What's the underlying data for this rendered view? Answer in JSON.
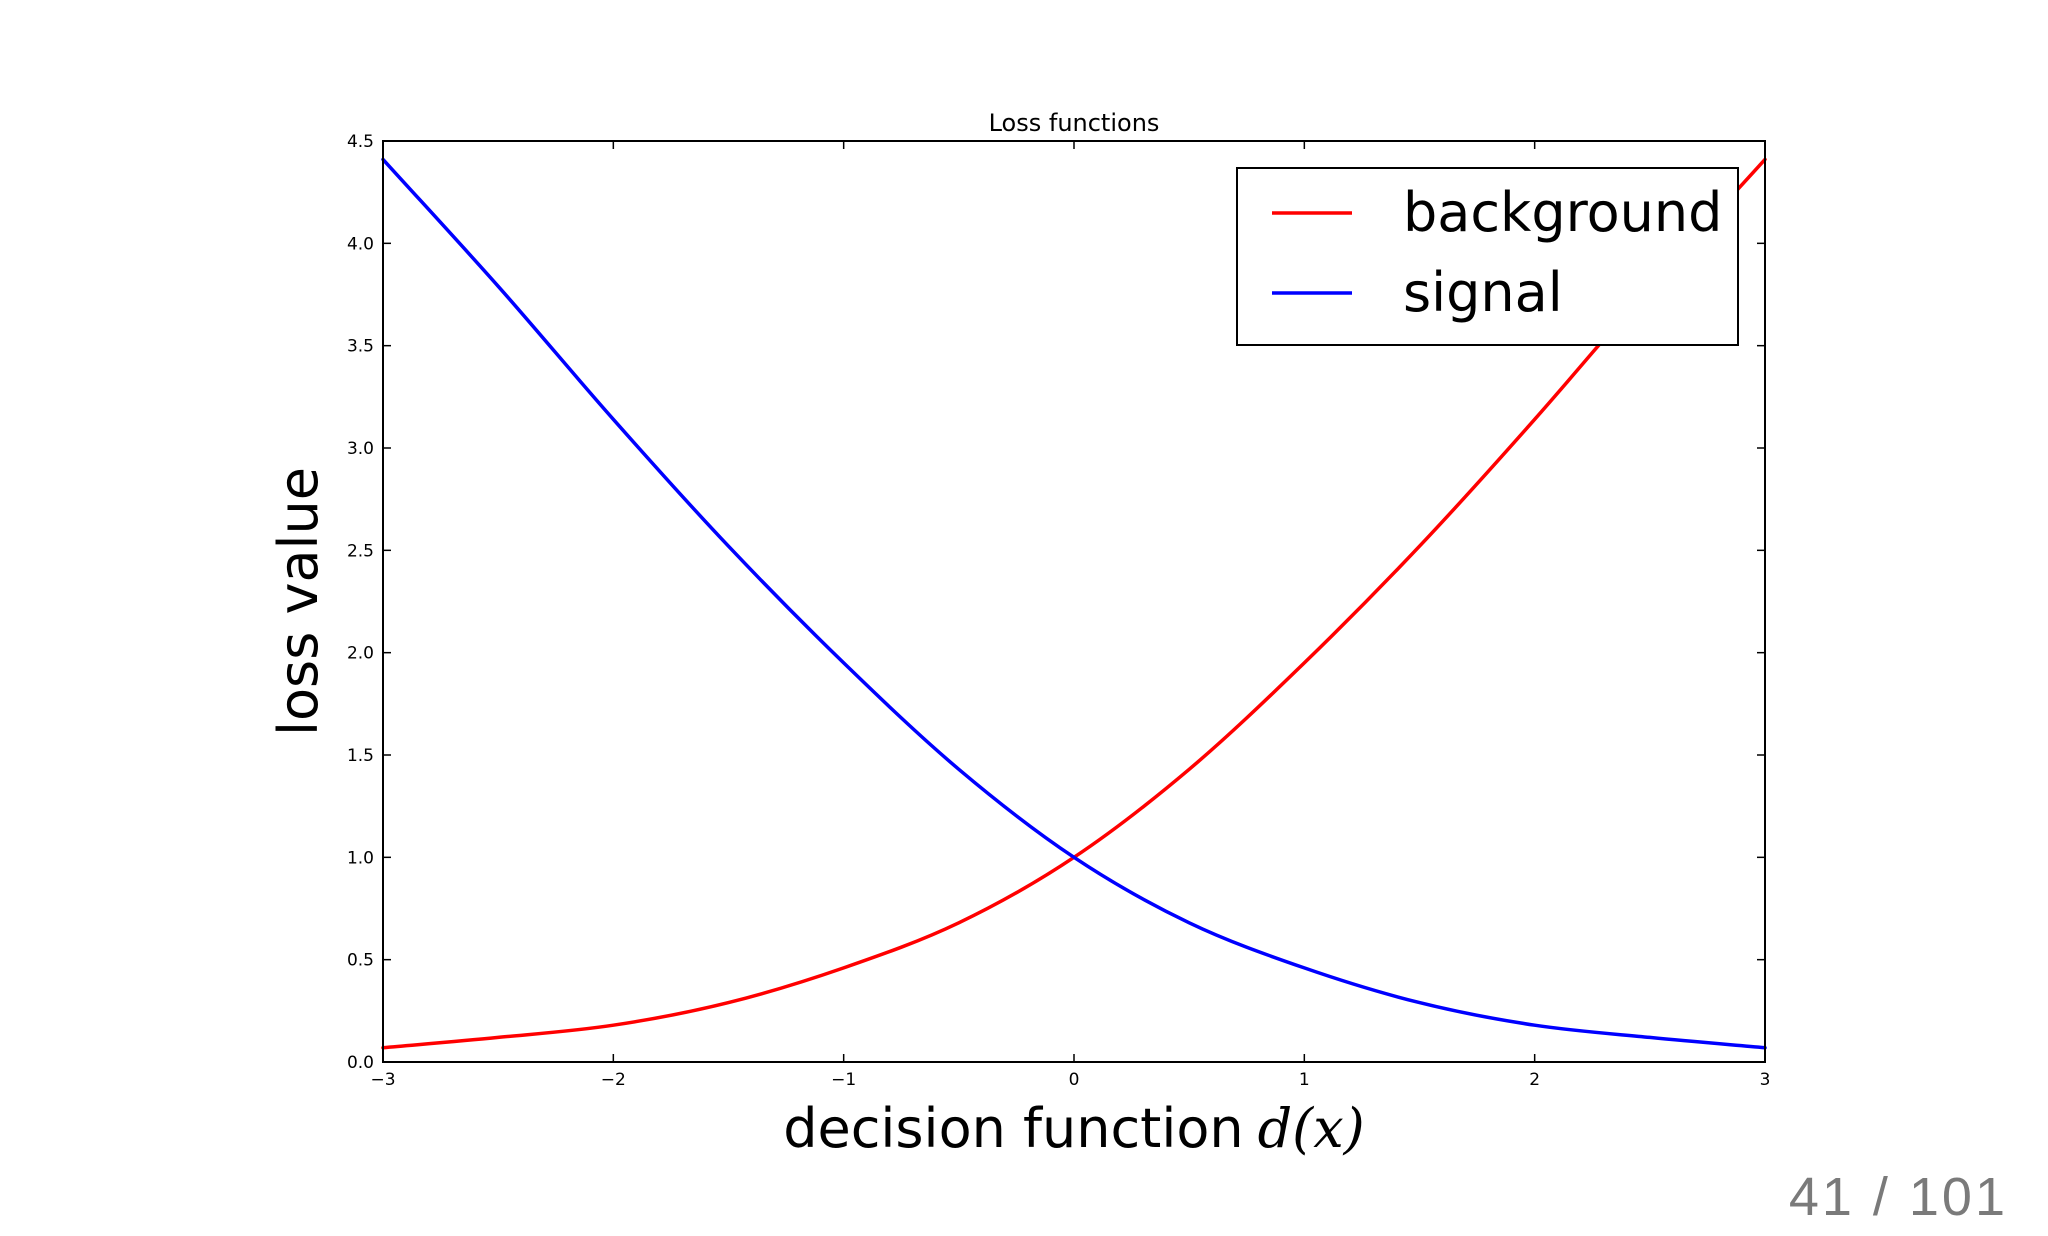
{
  "slide": {
    "page_number": "41 / 101"
  },
  "chart_data": {
    "type": "line",
    "title": "Loss functions",
    "xlabel": "decision function",
    "xlabel_math": "d(x)",
    "ylabel": "loss value",
    "xlim": [
      -3,
      3
    ],
    "ylim": [
      0,
      4.5
    ],
    "x_ticks": [
      "−3",
      "−2",
      "−1",
      "0",
      "1",
      "2",
      "3"
    ],
    "y_ticks": [
      "0.0",
      "0.5",
      "1.0",
      "1.5",
      "2.0",
      "2.5",
      "3.0",
      "3.5",
      "4.0",
      "4.5"
    ],
    "x": [
      -3.0,
      -2.5,
      -2.0,
      -1.5,
      -1.0,
      -0.5,
      0.0,
      0.5,
      1.0,
      1.5,
      2.0,
      2.5,
      3.0
    ],
    "series": [
      {
        "name": "background",
        "color": "#ff0000",
        "values": [
          0.07,
          0.12,
          0.18,
          0.29,
          0.46,
          0.68,
          1.0,
          1.43,
          1.95,
          2.52,
          3.14,
          3.79,
          4.41
        ]
      },
      {
        "name": "signal",
        "color": "#0000ff",
        "values": [
          4.41,
          3.79,
          3.14,
          2.52,
          1.95,
          1.43,
          1.0,
          0.68,
          0.46,
          0.29,
          0.18,
          0.12,
          0.07
        ]
      }
    ],
    "legend": {
      "position": "top-right",
      "entries": [
        "background",
        "signal"
      ]
    },
    "grid": false
  }
}
